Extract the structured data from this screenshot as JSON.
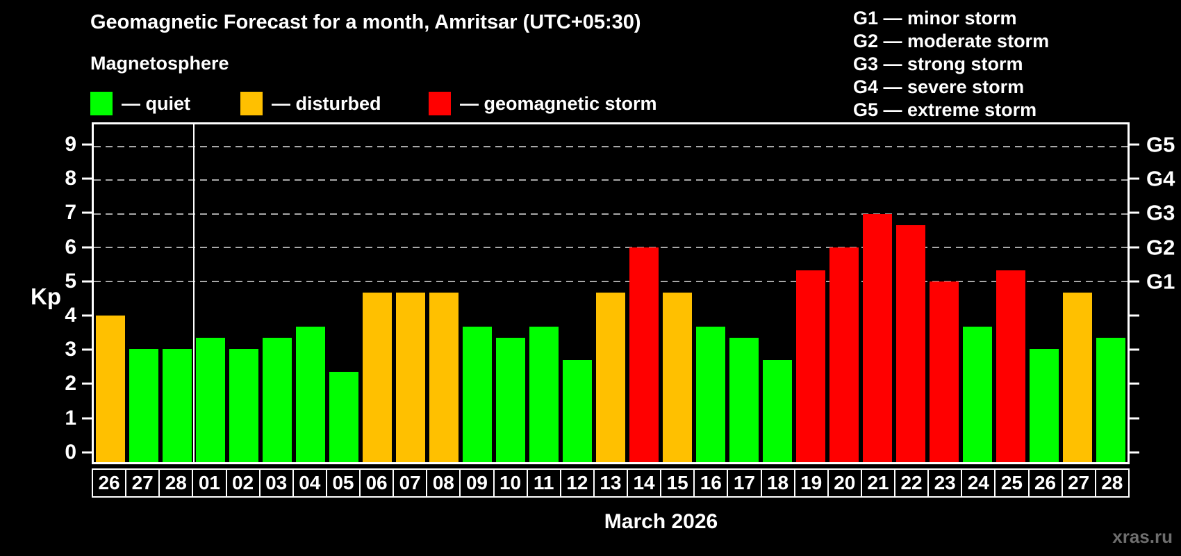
{
  "chart_data": {
    "type": "bar",
    "title": "Geomagnetic Forecast for a month, Amritsar (UTC+05:30)",
    "subtitle": "Magnetosphere",
    "ylabel": "Kp",
    "xlabel": "March 2026",
    "ylim": [
      -0.35,
      9.65
    ],
    "yticks": [
      0,
      1,
      2,
      3,
      4,
      5,
      6,
      7,
      8,
      9
    ],
    "grid_levels": [
      5,
      6,
      7,
      8,
      9
    ],
    "grid_color": "#a8a8a8",
    "right_axis_labels": [
      {
        "level": 5,
        "label": "G1"
      },
      {
        "level": 6,
        "label": "G2"
      },
      {
        "level": 7,
        "label": "G3"
      },
      {
        "level": 8,
        "label": "G4"
      },
      {
        "level": 9,
        "label": "G5"
      }
    ],
    "month_separator_after_index": 2,
    "categories": [
      "26",
      "27",
      "28",
      "01",
      "02",
      "03",
      "04",
      "05",
      "06",
      "07",
      "08",
      "09",
      "10",
      "11",
      "12",
      "13",
      "14",
      "15",
      "16",
      "17",
      "18",
      "19",
      "20",
      "21",
      "22",
      "23",
      "24",
      "25",
      "26",
      "27",
      "28"
    ],
    "values": [
      4.0,
      3.0,
      3.0,
      3.33,
      3.0,
      3.33,
      3.67,
      2.33,
      4.67,
      4.67,
      4.67,
      3.67,
      3.33,
      3.67,
      2.67,
      4.67,
      6.0,
      4.67,
      3.67,
      3.33,
      2.67,
      5.33,
      6.0,
      7.0,
      6.67,
      5.0,
      3.67,
      5.33,
      3.0,
      4.67,
      3.33
    ],
    "statuses": [
      "disturbed",
      "quiet",
      "quiet",
      "quiet",
      "quiet",
      "quiet",
      "quiet",
      "quiet",
      "disturbed",
      "disturbed",
      "disturbed",
      "quiet",
      "quiet",
      "quiet",
      "quiet",
      "disturbed",
      "storm",
      "disturbed",
      "quiet",
      "quiet",
      "quiet",
      "storm",
      "storm",
      "storm",
      "storm",
      "storm",
      "quiet",
      "storm",
      "quiet",
      "disturbed",
      "quiet"
    ],
    "status_colors": {
      "quiet": "#00ff00",
      "disturbed": "#ffc000",
      "storm": "#ff0000"
    }
  },
  "legend": {
    "items": [
      {
        "label": "— quiet",
        "status": "quiet",
        "color": "#00ff00"
      },
      {
        "label": "— disturbed",
        "status": "disturbed",
        "color": "#ffc000"
      },
      {
        "label": "— geomagnetic storm",
        "status": "storm",
        "color": "#ff0000"
      }
    ]
  },
  "g_legend": {
    "items": [
      {
        "label": "G1 — minor storm"
      },
      {
        "label": "G2 — moderate storm"
      },
      {
        "label": "G3 — strong storm"
      },
      {
        "label": "G4 — severe storm"
      },
      {
        "label": "G5 — extreme storm"
      }
    ]
  },
  "footer": {
    "watermark": "xras.ru"
  }
}
